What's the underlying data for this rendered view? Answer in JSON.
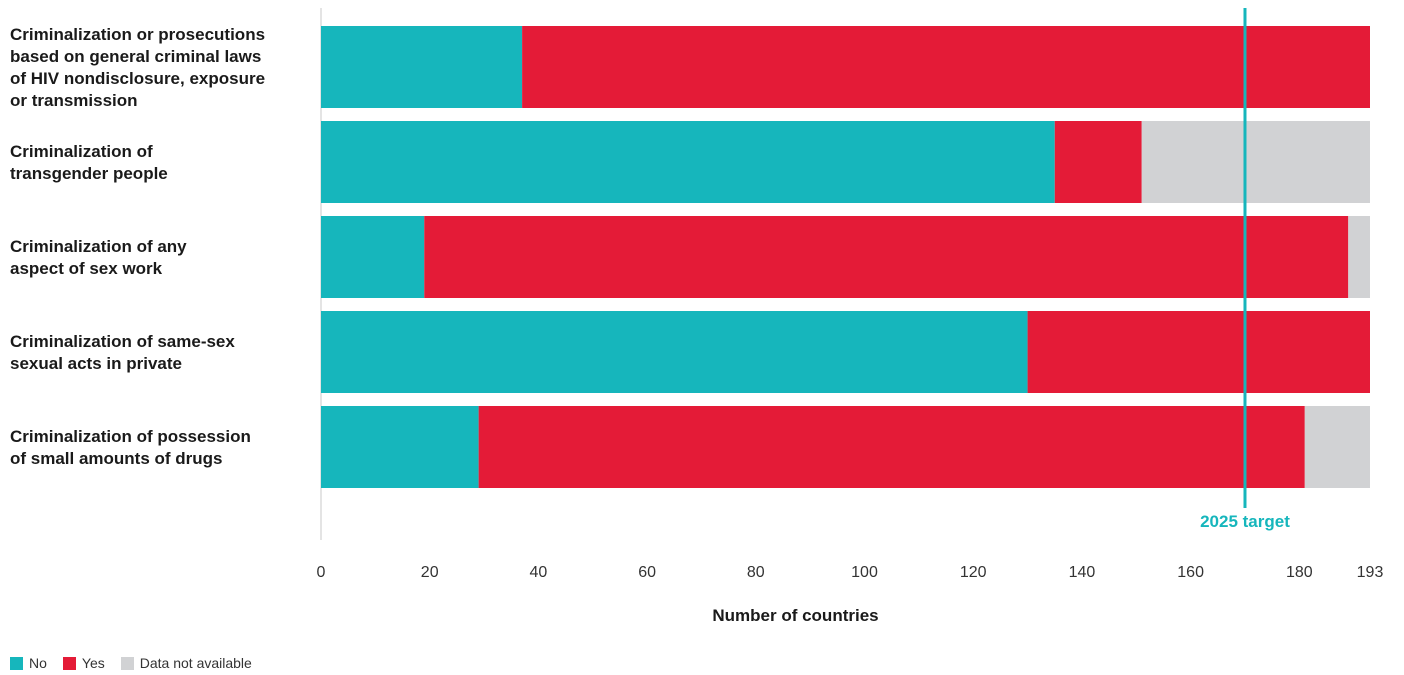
{
  "chart_data": {
    "type": "bar",
    "orientation": "horizontal",
    "stacked": true,
    "categories": [
      [
        "Criminalization or prosecutions",
        "based on general criminal laws",
        "of HIV nondisclosure, exposure",
        "or transmission"
      ],
      [
        "Criminalization of",
        "transgender people"
      ],
      [
        "Criminalization of any",
        "aspect of sex work"
      ],
      [
        "Criminalization of same-sex",
        "sexual acts in private"
      ],
      [
        "Criminalization of possession",
        "of small amounts of drugs"
      ]
    ],
    "series": [
      {
        "name": "No",
        "color": "#16b6bc",
        "values": [
          37,
          135,
          19,
          130,
          29
        ]
      },
      {
        "name": "Yes",
        "color": "#e41b37",
        "values": [
          156,
          16,
          170,
          63,
          152
        ]
      },
      {
        "name": "Data not available",
        "color": "#d1d2d4",
        "values": [
          0,
          42,
          4,
          0,
          12
        ]
      }
    ],
    "xlabel": "Number of countries",
    "xlim": [
      0,
      193
    ],
    "xticks": [
      0,
      20,
      40,
      60,
      80,
      100,
      120,
      140,
      160,
      180,
      193
    ],
    "target": {
      "value": 170,
      "label": "2025 target",
      "color": "#16b6bc"
    },
    "grid": false,
    "legend_position": "bottom-left"
  }
}
